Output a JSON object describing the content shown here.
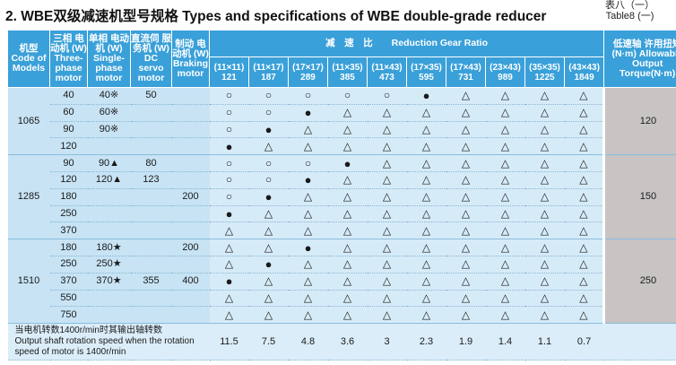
{
  "title": "2. WBE双级减速机型号规格 Types and specifications of WBE double-grade reducer",
  "table_label_cn": "表八（一）",
  "table_label_en": "Table8 (一)",
  "headers": {
    "model": "机型 Code of Models",
    "three_phase": "三相 电动机 (W) Three-phase motor",
    "single_phase": "单相 电动机 (W) Single-phase motor",
    "dc_servo": "直流伺 服务机 (W) DC servo motor",
    "braking": "制动 电动机 (W) Braking motor",
    "ratio_title": "减　速　比　　Reduction Gear Ratio",
    "torque": "低速轴 许用扭矩 (N·m) Allowable Output Torque(N·m)"
  },
  "ratio_labels": [
    "(11×11)",
    "(11×17)",
    "(17×17)",
    "(11×35)",
    "(11×43)",
    "(17×35)",
    "(17×43)",
    "(23×43)",
    "(35×35)",
    "(43×43)"
  ],
  "ratio_values": [
    "121",
    "187",
    "289",
    "385",
    "473",
    "595",
    "731",
    "989",
    "1225",
    "1849"
  ],
  "groups": [
    {
      "model": "1065",
      "torque": "120",
      "rows": [
        {
          "three": "40",
          "single": "40※",
          "dc": "50",
          "brake": "",
          "s": [
            "○",
            "○",
            "○",
            "○",
            "○",
            "●",
            "△",
            "△",
            "△",
            "△"
          ]
        },
        {
          "three": "60",
          "single": "60※",
          "dc": "",
          "brake": "",
          "s": [
            "○",
            "○",
            "●",
            "△",
            "△",
            "△",
            "△",
            "△",
            "△",
            "△"
          ]
        },
        {
          "three": "90",
          "single": "90※",
          "dc": "",
          "brake": "",
          "s": [
            "○",
            "●",
            "△",
            "△",
            "△",
            "△",
            "△",
            "△",
            "△",
            "△"
          ]
        },
        {
          "three": "120",
          "single": "",
          "dc": "",
          "brake": "",
          "s": [
            "●",
            "△",
            "△",
            "△",
            "△",
            "△",
            "△",
            "△",
            "△",
            "△"
          ]
        }
      ]
    },
    {
      "model": "1285",
      "torque": "150",
      "rows": [
        {
          "three": "90",
          "single": "90▲",
          "dc": "80",
          "brake": "",
          "s": [
            "○",
            "○",
            "○",
            "●",
            "△",
            "△",
            "△",
            "△",
            "△",
            "△"
          ]
        },
        {
          "three": "120",
          "single": "120▲",
          "dc": "123",
          "brake": "",
          "s": [
            "○",
            "○",
            "●",
            "△",
            "△",
            "△",
            "△",
            "△",
            "△",
            "△"
          ]
        },
        {
          "three": "180",
          "single": "",
          "dc": "",
          "brake": "200",
          "s": [
            "○",
            "●",
            "△",
            "△",
            "△",
            "△",
            "△",
            "△",
            "△",
            "△"
          ]
        },
        {
          "three": "250",
          "single": "",
          "dc": "",
          "brake": "",
          "s": [
            "●",
            "△",
            "△",
            "△",
            "△",
            "△",
            "△",
            "△",
            "△",
            "△"
          ]
        },
        {
          "three": "370",
          "single": "",
          "dc": "",
          "brake": "",
          "s": [
            "△",
            "△",
            "△",
            "△",
            "△",
            "△",
            "△",
            "△",
            "△",
            "△"
          ]
        }
      ]
    },
    {
      "model": "1510",
      "torque": "250",
      "rows": [
        {
          "three": "180",
          "single": "180★",
          "dc": "",
          "brake": "200",
          "s": [
            "△",
            "△",
            "●",
            "△",
            "△",
            "△",
            "△",
            "△",
            "△",
            "△"
          ]
        },
        {
          "three": "250",
          "single": "250★",
          "dc": "",
          "brake": "",
          "s": [
            "△",
            "●",
            "△",
            "△",
            "△",
            "△",
            "△",
            "△",
            "△",
            "△"
          ]
        },
        {
          "three": "370",
          "single": "370★",
          "dc": "355",
          "brake": "400",
          "s": [
            "●",
            "△",
            "△",
            "△",
            "△",
            "△",
            "△",
            "△",
            "△",
            "△"
          ]
        },
        {
          "three": "550",
          "single": "",
          "dc": "",
          "brake": "",
          "s": [
            "△",
            "△",
            "△",
            "△",
            "△",
            "△",
            "△",
            "△",
            "△",
            "△"
          ]
        },
        {
          "three": "750",
          "single": "",
          "dc": "",
          "brake": "",
          "s": [
            "△",
            "△",
            "△",
            "△",
            "△",
            "△",
            "△",
            "△",
            "△",
            "△"
          ]
        }
      ]
    }
  ],
  "footer": {
    "note_cn": "当电机转数1400r/min时其输出轴转数",
    "note_en": "Output shaft rotation speed when the rotation speed of motor is 1400r/min",
    "speeds": [
      "11.5",
      "7.5",
      "4.8",
      "3.6",
      "3",
      "2.3",
      "1.9",
      "1.4",
      "1.1",
      "0.7"
    ]
  }
}
